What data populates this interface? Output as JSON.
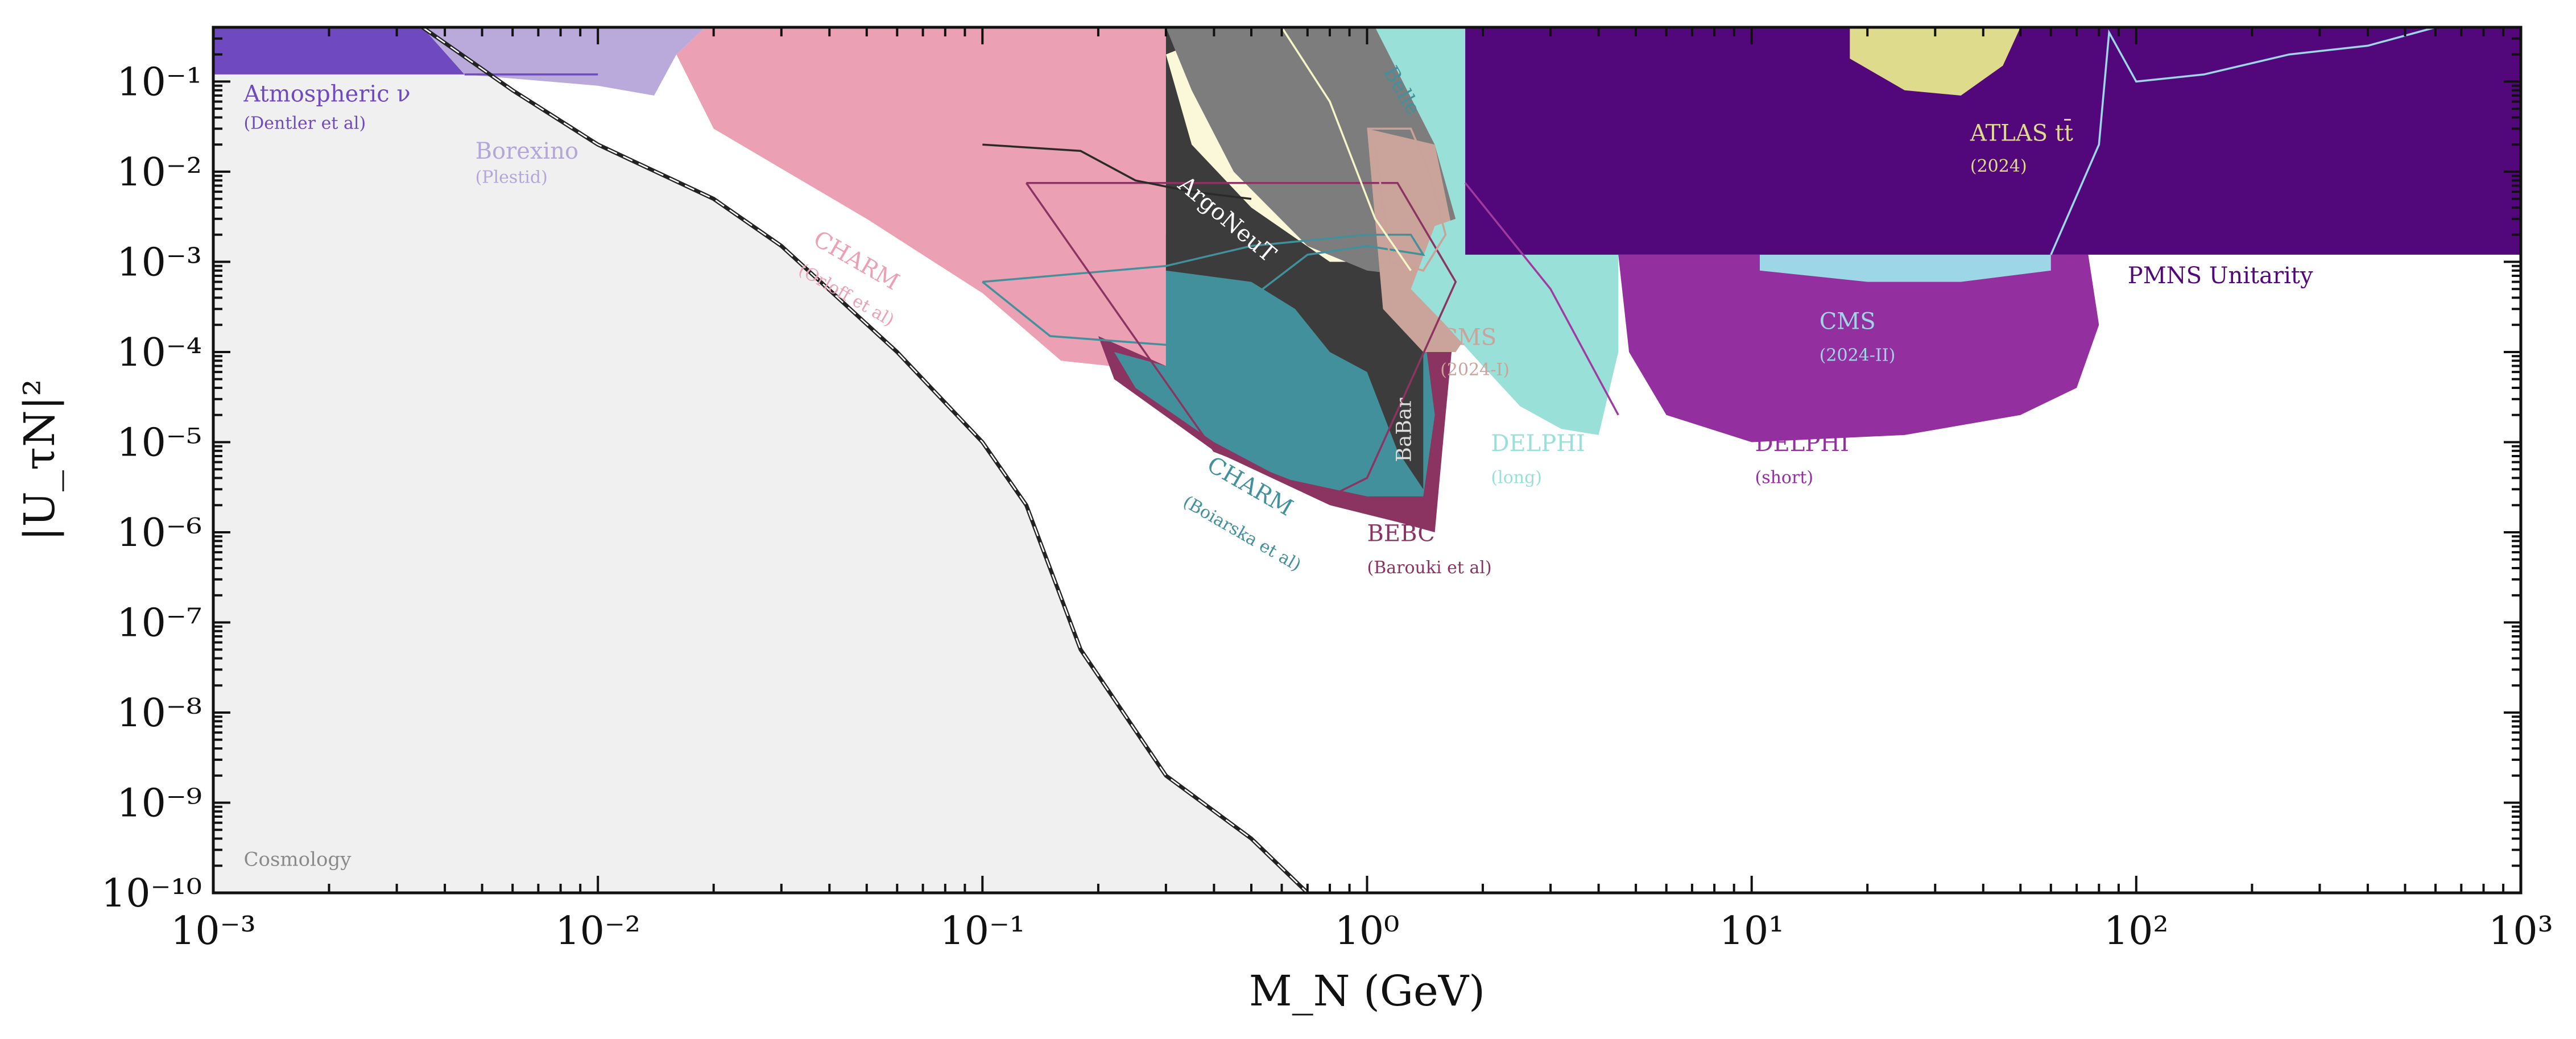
{
  "chart_data": {
    "type": "area",
    "title": "",
    "xlabel": "M_N (GeV)",
    "ylabel": "|U_τN|²",
    "xscale": "log",
    "yscale": "log",
    "xlim": [
      0.001,
      1000
    ],
    "ylim": [
      1e-10,
      0.4
    ],
    "x_ticks": [
      "10⁻³",
      "10⁻²",
      "10⁻¹",
      "10⁰",
      "10¹",
      "10²",
      "10³"
    ],
    "y_ticks": [
      "10⁻¹⁰",
      "10⁻⁹",
      "10⁻⁸",
      "10⁻⁷",
      "10⁻⁶",
      "10⁻⁵",
      "10⁻⁴",
      "10⁻³",
      "10⁻²",
      "10⁻¹"
    ],
    "grid": false,
    "regions": [
      {
        "name": "Cosmology",
        "color": "#f0f0f0",
        "points": [
          [
            0.001,
            0.4
          ],
          [
            0.0035,
            0.4
          ],
          [
            0.006,
            0.08
          ],
          [
            0.01,
            0.02
          ],
          [
            0.02,
            0.005
          ],
          [
            0.03,
            0.0015
          ],
          [
            0.06,
            0.0001
          ],
          [
            0.1,
            1e-05
          ],
          [
            0.13,
            2e-06
          ],
          [
            0.18,
            5e-08
          ],
          [
            0.3,
            2e-09
          ],
          [
            0.5,
            4e-10
          ],
          [
            0.7,
            1e-10
          ],
          [
            0.001,
            1e-10
          ]
        ]
      },
      {
        "name": "Atmospheric ν",
        "color": "#6f49bf",
        "points": [
          [
            0.001,
            0.4
          ],
          [
            0.0035,
            0.4
          ],
          [
            0.0045,
            0.12
          ],
          [
            0.001,
            0.12
          ]
        ]
      },
      {
        "name": "Borexino",
        "color": "#b9aadb",
        "points": [
          [
            0.0035,
            0.4
          ],
          [
            0.019,
            0.4
          ],
          [
            0.016,
            0.2
          ],
          [
            0.014,
            0.07
          ],
          [
            0.01,
            0.09
          ],
          [
            0.0045,
            0.12
          ]
        ]
      },
      {
        "name": "CHARM (Orloff et al)",
        "color": "#eca0b4",
        "points": [
          [
            0.019,
            0.4
          ],
          [
            0.3,
            0.4
          ],
          [
            0.3,
            6e-05
          ],
          [
            0.16,
            8e-05
          ],
          [
            0.1,
            0.00045
          ],
          [
            0.05,
            0.003
          ],
          [
            0.02,
            0.03
          ],
          [
            0.016,
            0.2
          ]
        ]
      },
      {
        "name": "BEBC (Barouki et al)",
        "color": "#8c3461",
        "points": [
          [
            0.3,
            0.002
          ],
          [
            0.6,
            0.0015
          ],
          [
            1.0,
            0.0008
          ],
          [
            1.7,
            0.0003
          ],
          [
            1.6,
            2e-05
          ],
          [
            1.5,
            1e-06
          ],
          [
            1.2,
            1.3e-06
          ],
          [
            0.8,
            2e-06
          ],
          [
            0.4,
            8e-06
          ],
          [
            0.22,
            5e-05
          ],
          [
            0.2,
            0.00015
          ],
          [
            0.3,
            7e-05
          ]
        ]
      },
      {
        "name": "CHARM (Boiarska et al)",
        "color": "#42909b",
        "points": [
          [
            0.3,
            0.001
          ],
          [
            0.55,
            0.0012
          ],
          [
            1.0,
            0.0004
          ],
          [
            1.4,
            0.0002
          ],
          [
            1.5,
            2e-05
          ],
          [
            1.4,
            2.5e-06
          ],
          [
            1.0,
            2.5e-06
          ],
          [
            0.6,
            4e-06
          ],
          [
            0.4,
            1e-05
          ],
          [
            0.25,
            4e-05
          ],
          [
            0.22,
            0.0001
          ],
          [
            0.3,
            7e-05
          ]
        ]
      },
      {
        "name": "ArgoNeuT",
        "color": "#3c3c3c",
        "points": [
          [
            0.3,
            0.4
          ],
          [
            0.42,
            0.4
          ],
          [
            1.0,
            0.004
          ],
          [
            1.4,
            0.0004
          ],
          [
            1.4,
            3e-06
          ],
          [
            1.2,
            8e-06
          ],
          [
            1.0,
            6e-05
          ],
          [
            0.8,
            0.0001
          ],
          [
            0.65,
            0.0003
          ],
          [
            0.5,
            0.0006
          ],
          [
            0.3,
            0.0008
          ]
        ]
      },
      {
        "name": "ArgoNeuT bright",
        "color": "#fbf8d9",
        "points": [
          [
            0.3,
            0.2
          ],
          [
            0.45,
            0.4
          ],
          [
            0.8,
            0.4
          ],
          [
            1.2,
            0.02
          ],
          [
            1.6,
            0.003
          ],
          [
            1.2,
            0.001
          ],
          [
            0.8,
            0.001
          ],
          [
            0.5,
            0.004
          ],
          [
            0.35,
            0.02
          ]
        ]
      },
      {
        "name": "Belle / BaBar",
        "color": "#7d7d7d",
        "points": [
          [
            0.3,
            0.4
          ],
          [
            1.05,
            0.4
          ],
          [
            1.5,
            0.02
          ],
          [
            1.7,
            0.003
          ],
          [
            1.5,
            0.0012
          ],
          [
            1.3,
            0.0007
          ],
          [
            1.0,
            0.0008
          ],
          [
            0.7,
            0.0015
          ],
          [
            0.45,
            0.01
          ],
          [
            0.35,
            0.08
          ]
        ]
      },
      {
        "name": "CMS (2024-I)",
        "color": "#caa39a",
        "points": [
          [
            1.0,
            0.03
          ],
          [
            1.5,
            0.02
          ],
          [
            1.7,
            0.0015
          ],
          [
            1.9,
            0.0002
          ],
          [
            1.7,
            0.0001
          ],
          [
            1.4,
            0.0001
          ],
          [
            1.1,
            0.0003
          ]
        ]
      },
      {
        "name": "Belle",
        "color": "#98e0d8",
        "points": [
          [
            1.05,
            0.4
          ],
          [
            1.8,
            0.4
          ],
          [
            1.8,
            0.0012
          ],
          [
            4.5,
            0.0012
          ],
          [
            4.5,
            0.0001
          ],
          [
            4.0,
            1.2e-05
          ],
          [
            3.2,
            1.4e-05
          ],
          [
            2.5,
            2.5e-05
          ],
          [
            2.0,
            7e-05
          ],
          [
            1.6,
            0.0002
          ],
          [
            1.3,
            0.0005
          ],
          [
            1.5,
            0.0025
          ],
          [
            1.7,
            0.003
          ],
          [
            1.5,
            0.02
          ]
        ]
      },
      {
        "name": "DELPHI (short)",
        "color": "#932f9e",
        "points": [
          [
            4.5,
            0.0012
          ],
          [
            60,
            0.0012
          ],
          [
            75,
            0.0012
          ],
          [
            80,
            0.0002
          ],
          [
            70,
            4e-05
          ],
          [
            50,
            2e-05
          ],
          [
            25,
            1.2e-05
          ],
          [
            10,
            1e-05
          ],
          [
            6,
            2e-05
          ],
          [
            4.8,
            0.0001
          ]
        ]
      },
      {
        "name": "CMS (2024-II)",
        "color": "#9dd6e6",
        "points": [
          [
            10.5,
            0.0012
          ],
          [
            60,
            0.0012
          ],
          [
            60,
            0.0008
          ],
          [
            35,
            0.0006
          ],
          [
            20,
            0.0006
          ],
          [
            10.5,
            0.0008
          ]
        ]
      },
      {
        "name": "PMNS Unitarity",
        "color": "#52087a",
        "points": [
          [
            1.8,
            0.4
          ],
          [
            1000,
            0.4
          ],
          [
            1000,
            0.0012
          ],
          [
            1.8,
            0.0012
          ]
        ]
      },
      {
        "name": "ATLAS tt̄ (2024)",
        "color": "#dedb8c",
        "points": [
          [
            18,
            0.4
          ],
          [
            50,
            0.4
          ],
          [
            45,
            0.15
          ],
          [
            35,
            0.07
          ],
          [
            25,
            0.08
          ],
          [
            18,
            0.18
          ]
        ]
      }
    ],
    "lines": [
      {
        "name": "Atmospheric ν",
        "color": "#6f49bf",
        "points": [
          [
            0.0045,
            0.12
          ],
          [
            0.01,
            0.12
          ]
        ]
      },
      {
        "name": "CHARM (Boiarska et al)",
        "color": "#42909b",
        "points": [
          [
            0.1,
            0.0006
          ],
          [
            0.15,
            0.00015
          ],
          [
            0.3,
            0.00012
          ],
          [
            0.5,
            0.0004
          ],
          [
            0.7,
            0.0012
          ],
          [
            1.0,
            0.0015
          ],
          [
            1.4,
            0.0012
          ],
          [
            1.3,
            0.002
          ],
          [
            1.0,
            0.002
          ],
          [
            0.5,
            0.0015
          ],
          [
            0.3,
            0.0009
          ],
          [
            0.1,
            0.0006
          ]
        ]
      },
      {
        "name": "BEBC (Barouki et al)",
        "color": "#8c3461",
        "points": [
          [
            0.13,
            0.0075
          ],
          [
            0.3,
            0.0075
          ],
          [
            1.2,
            0.0075
          ],
          [
            1.7,
            0.0006
          ],
          [
            1.0,
            4e-06
          ],
          [
            0.8,
            2.5e-06
          ],
          [
            0.4,
            8e-06
          ],
          [
            0.13,
            0.0075
          ]
        ]
      },
      {
        "name": "Belle",
        "color": "#c9a299",
        "points": [
          [
            1.0,
            0.03
          ],
          [
            1.3,
            0.03
          ],
          [
            1.45,
            0.01
          ],
          [
            1.6,
            0.002
          ],
          [
            1.4,
            0.0008
          ],
          [
            1.15,
            0.001
          ],
          [
            1.05,
            0.02
          ]
        ]
      },
      {
        "name": "dark",
        "color": "#2a2a2a",
        "points": [
          [
            0.1,
            0.02
          ],
          [
            0.18,
            0.017
          ],
          [
            0.25,
            0.008
          ],
          [
            0.35,
            0.006
          ],
          [
            0.5,
            0.005
          ]
        ]
      },
      {
        "name": "ArgoNeuT edge",
        "color": "#f5f5c8",
        "points": [
          [
            0.35,
            0.4
          ],
          [
            0.6,
            0.4
          ],
          [
            0.8,
            0.06
          ],
          [
            1.05,
            0.003
          ],
          [
            1.3,
            0.0008
          ]
        ]
      },
      {
        "name": "purple thin",
        "color": "#a03aa0",
        "points": [
          [
            1.8,
            0.0075
          ],
          [
            3.0,
            0.0005
          ],
          [
            4.5,
            2e-05
          ]
        ]
      },
      {
        "name": "PMNS",
        "color": "#9dd6e6",
        "points": [
          [
            60,
            0.0012
          ],
          [
            80,
            0.02
          ],
          [
            85,
            0.35
          ],
          [
            100,
            0.1
          ],
          [
            150,
            0.12
          ],
          [
            250,
            0.2
          ],
          [
            400,
            0.25
          ],
          [
            600,
            0.4
          ]
        ]
      }
    ],
    "labels": [
      {
        "text": "Atmospheric ν",
        "color": "#6f49bf",
        "x": 0.0012,
        "y": 0.06,
        "size": 40,
        "rot": 0,
        "italic_nu": true
      },
      {
        "text": "(Dentler et al)",
        "color": "#6f49bf",
        "x": 0.0012,
        "y": 0.03,
        "size": 30,
        "rot": 0
      },
      {
        "text": "Borexino",
        "color": "#b4a6d8",
        "x": 0.0048,
        "y": 0.014,
        "size": 40,
        "rot": 0
      },
      {
        "text": "(Plestid)",
        "color": "#b4a6d8",
        "x": 0.0048,
        "y": 0.0075,
        "size": 30,
        "rot": 0
      },
      {
        "text": "CHARM",
        "color": "#eca0b4",
        "x": 0.036,
        "y": 0.0016,
        "size": 40,
        "rot": 30
      },
      {
        "text": "(Orloff et al)",
        "color": "#eca0b4",
        "x": 0.033,
        "y": 0.00075,
        "size": 30,
        "rot": 30
      },
      {
        "text": "ArgoNeuT",
        "color": "#ffffff",
        "x": 0.32,
        "y": 0.0068,
        "size": 40,
        "rot": 40
      },
      {
        "text": "Belle",
        "color": "#42909b",
        "x": 1.1,
        "y": 0.13,
        "size": 36,
        "rot": 60
      },
      {
        "text": "CMS",
        "color": "#caa39a",
        "x": 1.55,
        "y": 0.00012,
        "size": 40,
        "rot": 0
      },
      {
        "text": "(2024-I)",
        "color": "#caa39a",
        "x": 1.55,
        "y": 5.5e-05,
        "size": 30,
        "rot": 0
      },
      {
        "text": "BaBar",
        "color": "#dddddd",
        "x": 1.3,
        "y": 6e-06,
        "size": 36,
        "rot": -90
      },
      {
        "text": "CHARM",
        "color": "#42909b",
        "x": 0.38,
        "y": 5e-06,
        "size": 40,
        "rot": 30
      },
      {
        "text": "(Boiarska et al)",
        "color": "#42909b",
        "x": 0.33,
        "y": 2e-06,
        "size": 30,
        "rot": 30
      },
      {
        "text": "BEBC",
        "color": "#8c3461",
        "x": 1.0,
        "y": 8e-07,
        "size": 40,
        "rot": 0
      },
      {
        "text": "(Barouki et al)",
        "color": "#8c3461",
        "x": 1.0,
        "y": 3.5e-07,
        "size": 30,
        "rot": 0
      },
      {
        "text": "DELPHI",
        "color": "#98e0d8",
        "x": 2.1,
        "y": 8e-06,
        "size": 40,
        "rot": 0
      },
      {
        "text": "(long)",
        "color": "#98e0d8",
        "x": 2.1,
        "y": 3.5e-06,
        "size": 30,
        "rot": 0
      },
      {
        "text": "DELPHI",
        "color": "#932f9e",
        "x": 10.2,
        "y": 8e-06,
        "size": 40,
        "rot": 0
      },
      {
        "text": "(short)",
        "color": "#932f9e",
        "x": 10.2,
        "y": 3.5e-06,
        "size": 30,
        "rot": 0
      },
      {
        "text": "CMS",
        "color": "#9dd6e6",
        "x": 15,
        "y": 0.00018,
        "size": 40,
        "rot": 0
      },
      {
        "text": "(2024-II)",
        "color": "#9dd6e6",
        "x": 15,
        "y": 8e-05,
        "size": 30,
        "rot": 0
      },
      {
        "text": "ATLAS tt̄",
        "color": "#dedb8c",
        "x": 37,
        "y": 0.022,
        "size": 40,
        "rot": 0
      },
      {
        "text": "(2024)",
        "color": "#dedb8c",
        "x": 37,
        "y": 0.01,
        "size": 30,
        "rot": 0
      },
      {
        "text": "PMNS Unitarity",
        "color": "#52087a",
        "x": 95,
        "y": 0.00058,
        "size": 40,
        "rot": 0
      },
      {
        "text": "Cosmology",
        "color": "#8a8a8a",
        "x": 0.0012,
        "y": 2e-10,
        "size": 34,
        "rot": 0
      }
    ],
    "boundary": {
      "name": "Cosmology boundary",
      "style": "dashed",
      "points": [
        [
          0.0035,
          0.4
        ],
        [
          0.006,
          0.08
        ],
        [
          0.01,
          0.02
        ],
        [
          0.02,
          0.005
        ],
        [
          0.03,
          0.0015
        ],
        [
          0.06,
          0.0001
        ],
        [
          0.1,
          1e-05
        ],
        [
          0.13,
          2e-06
        ],
        [
          0.18,
          5e-08
        ],
        [
          0.3,
          2e-09
        ],
        [
          0.5,
          4e-10
        ],
        [
          0.7,
          1e-10
        ]
      ]
    }
  }
}
